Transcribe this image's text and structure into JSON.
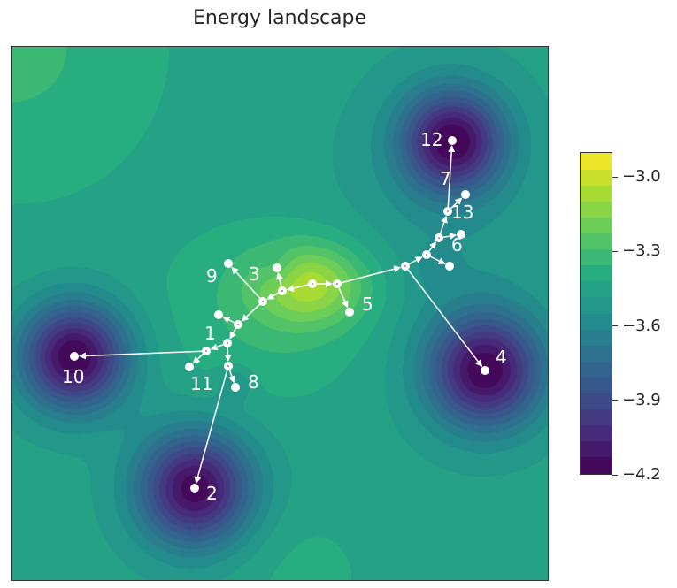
{
  "chart_data": {
    "type": "heatmap",
    "subtype": "filled-contour with tree overlay",
    "title": "Energy landscape",
    "colormap": "viridis",
    "colorbar": {
      "range": [
        -4.2,
        -2.9
      ],
      "ticks": [
        "-3.0",
        "-3.3",
        "-3.6",
        "-3.9",
        "-4.2"
      ]
    },
    "axes_ticks": false,
    "minima_labels": [
      "1",
      "2",
      "3",
      "4",
      "5",
      "6",
      "7",
      "8",
      "9",
      "10",
      "11",
      "12",
      "13"
    ],
    "edge_color": "#ffffff"
  }
}
